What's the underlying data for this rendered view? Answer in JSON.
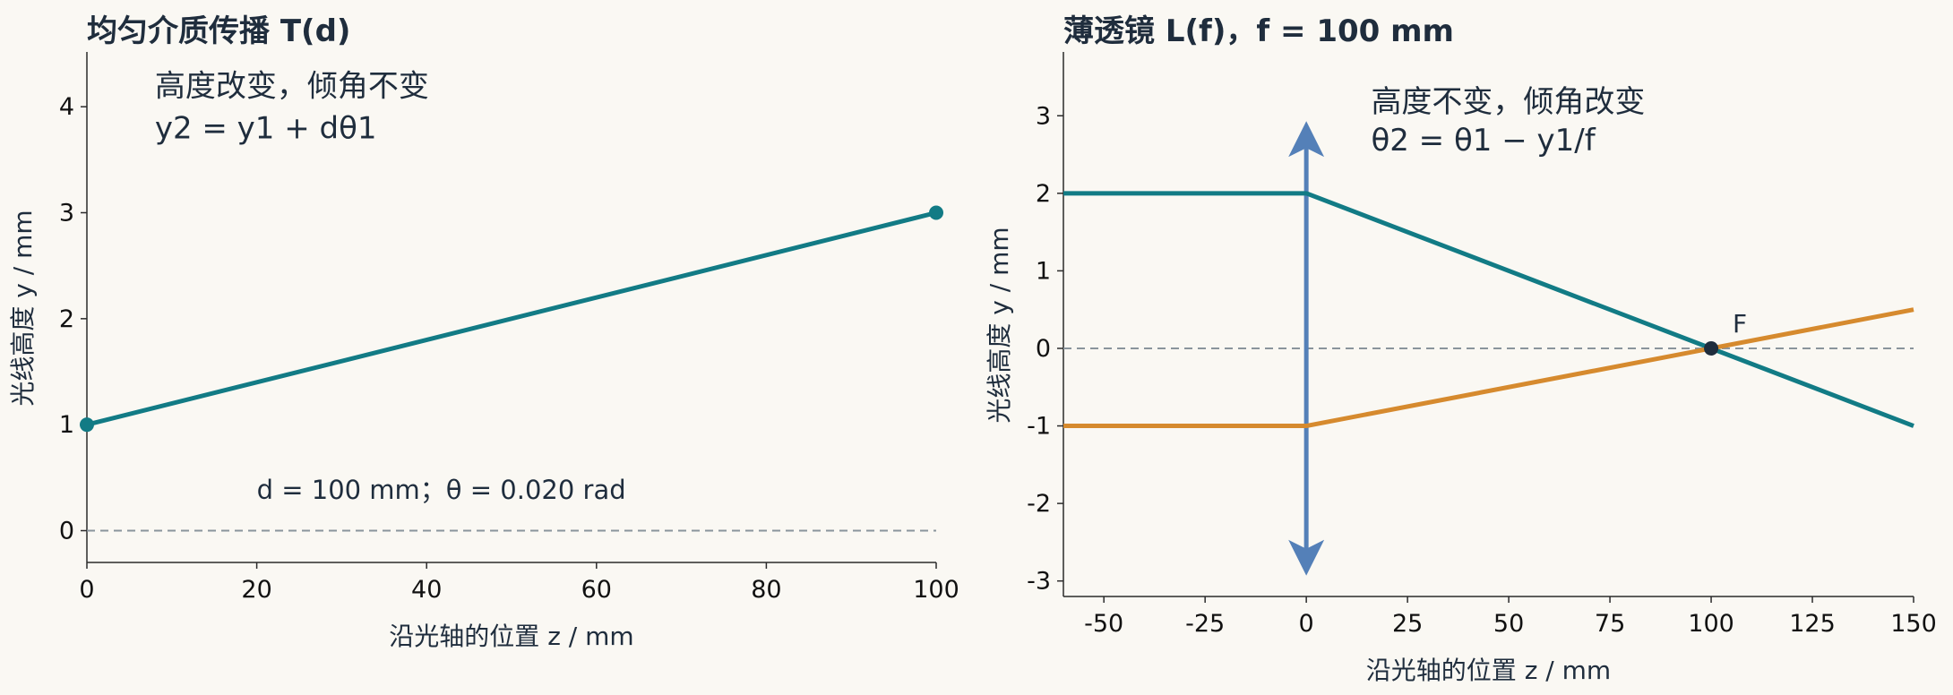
{
  "chart_data": [
    {
      "type": "line",
      "title": "均匀介质传播 T(d)",
      "xlabel": "沿光轴的位置 z / mm",
      "ylabel": "光线高度 y / mm",
      "xlim": [
        0,
        100
      ],
      "ylim": [
        -0.3,
        4.5
      ],
      "xticks": [
        0,
        20,
        40,
        60,
        80,
        100
      ],
      "yticks": [
        0,
        1,
        2,
        3,
        4
      ],
      "grid": false,
      "reference_line": {
        "y": 0,
        "style": "dashed"
      },
      "series": [
        {
          "x": [
            0,
            100
          ],
          "y": [
            1,
            3
          ],
          "color": "#127b85",
          "endpoint_markers": true
        }
      ],
      "annotations": [
        {
          "text": "高度改变，倾角不变",
          "x": 8,
          "y": 4.1
        },
        {
          "text": "y2 = y1 + dθ1",
          "x": 8,
          "y": 3.7
        },
        {
          "text": "d = 100 mm；θ = 0.020 rad",
          "x": 20,
          "y": 0.3
        }
      ]
    },
    {
      "type": "line",
      "title": "薄透镜 L(f)，f = 100 mm",
      "xlabel": "沿光轴的位置 z / mm",
      "ylabel": "光线高度 y / mm",
      "xlim": [
        -60,
        150
      ],
      "ylim": [
        -3.2,
        3.8
      ],
      "xticks": [
        -50,
        -25,
        0,
        25,
        50,
        75,
        100,
        125,
        150
      ],
      "yticks": [
        -3,
        -2,
        -1,
        0,
        1,
        2,
        3
      ],
      "grid": false,
      "reference_line": {
        "y": 0,
        "style": "dashed"
      },
      "lens": {
        "x": 0,
        "y_range": [
          -2.7,
          2.7
        ],
        "color": "#5480b8"
      },
      "series": [
        {
          "x": [
            -60,
            0,
            150
          ],
          "y": [
            2,
            2,
            -1
          ],
          "color": "#127b85"
        },
        {
          "x": [
            -60,
            0,
            150
          ],
          "y": [
            -1,
            -1,
            0.5
          ],
          "color": "#d68a2e"
        }
      ],
      "focal_point": {
        "x": 100,
        "y": 0,
        "label": "F"
      },
      "annotations": [
        {
          "text": "高度不变，倾角改变",
          "x": 16,
          "y": 3.05
        },
        {
          "text": "θ2 = θ1 − y1/f",
          "x": 16,
          "y": 2.55
        }
      ]
    }
  ]
}
